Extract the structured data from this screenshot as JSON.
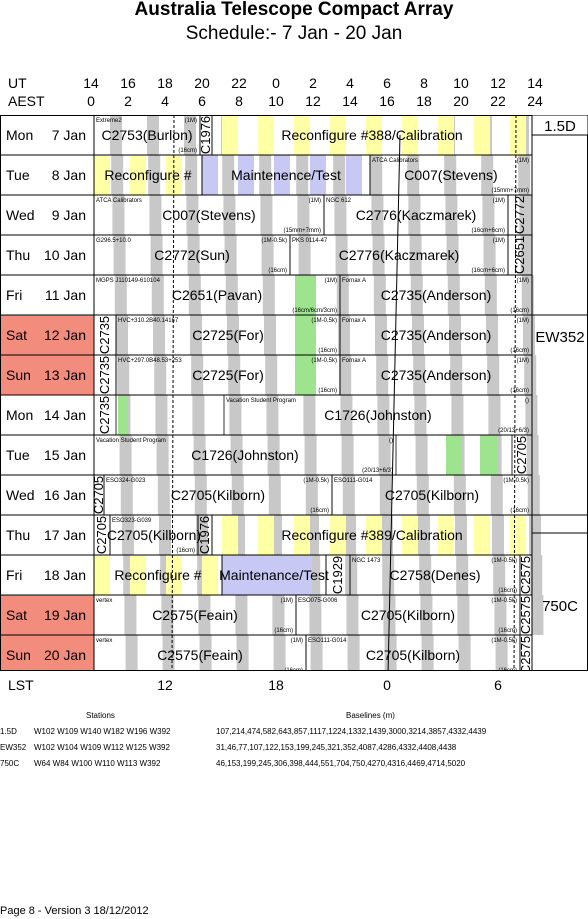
{
  "title": "Australia Telescope Compact Array",
  "subtitle": "Schedule:- 7  Jan - 20 Jan",
  "header": {
    "ut_label": "UT",
    "aest_label": "AEST",
    "lst_label": "LST",
    "ut_ticks": [
      "14",
      "16",
      "18",
      "20",
      "22",
      "0",
      "2",
      "4",
      "6",
      "8",
      "10",
      "12",
      "14"
    ],
    "aest_ticks": [
      "0",
      "2",
      "4",
      "6",
      "8",
      "10",
      "12",
      "14",
      "16",
      "18",
      "20",
      "22",
      "24"
    ],
    "lst_ticks": [
      "12",
      "18",
      "0",
      "6"
    ]
  },
  "days": [
    {
      "wd": "Mon",
      "d": "7 Jan",
      "weekend": false
    },
    {
      "wd": "Tue",
      "d": "8 Jan",
      "weekend": false
    },
    {
      "wd": "Wed",
      "d": "9 Jan",
      "weekend": false
    },
    {
      "wd": "Thu",
      "d": "10 Jan",
      "weekend": false
    },
    {
      "wd": "Fri",
      "d": "11 Jan",
      "weekend": false
    },
    {
      "wd": "Sat",
      "d": "12 Jan",
      "weekend": true
    },
    {
      "wd": "Sun",
      "d": "13 Jan",
      "weekend": true
    },
    {
      "wd": "Mon",
      "d": "14 Jan",
      "weekend": false
    },
    {
      "wd": "Tue",
      "d": "15 Jan",
      "weekend": false
    },
    {
      "wd": "Wed",
      "d": "16 Jan",
      "weekend": false
    },
    {
      "wd": "Thu",
      "d": "17 Jan",
      "weekend": false
    },
    {
      "wd": "Fri",
      "d": "18 Jan",
      "weekend": false
    },
    {
      "wd": "Sat",
      "d": "19 Jan",
      "weekend": true
    },
    {
      "wd": "Sun",
      "d": "20 Jan",
      "weekend": true
    }
  ],
  "configs": [
    "1.5D",
    "EW352",
    "750C"
  ],
  "blocks": [
    {
      "row": 0,
      "x0": 94,
      "x1": 200,
      "label": "C2753(Burlon)",
      "small": "Extreme2",
      "note": "(1M)",
      "note2": "(16cm)"
    },
    {
      "row": 0,
      "x0": 200,
      "x1": 212,
      "label": "C1976",
      "vertical": true
    },
    {
      "row": 0,
      "x0": 212,
      "x1": 532,
      "label": "Reconfigure #388/Calibration"
    },
    {
      "row": 1,
      "x0": 94,
      "x1": 202,
      "label": "Reconfigure #"
    },
    {
      "row": 1,
      "x0": 202,
      "x1": 370,
      "label": "Maintenence/Test"
    },
    {
      "row": 1,
      "x0": 370,
      "x1": 532,
      "label": "C007(Stevens)",
      "small": "ATCA Calibrators",
      "note": "(1M)",
      "note2": "(15mm+7mm)"
    },
    {
      "row": 2,
      "x0": 94,
      "x1": 324,
      "label": "C007(Stevens)",
      "small": "ATCA Calibrators",
      "note": "(1M)",
      "note2": "(15mm+7mm)"
    },
    {
      "row": 2,
      "x0": 324,
      "x1": 508,
      "label": "C2776(Kaczmarek)",
      "small": "NGC 612",
      "note": "(1M)",
      "note2": "(16cm+6cm)"
    },
    {
      "row": 2,
      "x0": 508,
      "x1": 532,
      "label": "C2772",
      "vertical": true
    },
    {
      "row": 3,
      "x0": 94,
      "x1": 290,
      "label": "C2772(Sun)",
      "small": "G296.5+10.0",
      "note": "(1M-0.5k)",
      "note2": "(16cm)"
    },
    {
      "row": 3,
      "x0": 290,
      "x1": 508,
      "label": "C2776(Kaczmarek)",
      "small": "PKS 0114-47",
      "note": "(1M)",
      "note2": "(16cm+6cm)"
    },
    {
      "row": 3,
      "x0": 508,
      "x1": 532,
      "label": "C2651",
      "vertical": true
    },
    {
      "row": 4,
      "x0": 94,
      "x1": 340,
      "label": "C2651(Pavan)",
      "small": "MGPS J110149-610104",
      "note": "(1M)",
      "note2": "(16cm/6cm/3cm)"
    },
    {
      "row": 4,
      "x0": 340,
      "x1": 532,
      "label": "C2735(Anderson)",
      "small": "Fornax A",
      "note": "(1M)",
      "note2": "(16cm)"
    },
    {
      "row": 5,
      "x0": 94,
      "x1": 116,
      "label": "C2735",
      "vertical": true
    },
    {
      "row": 5,
      "x0": 116,
      "x1": 340,
      "label": "C2725(For)",
      "small": "HVC+310.2B40.14167",
      "note": "(1M-0.5k)",
      "note2": "(16cm)"
    },
    {
      "row": 5,
      "x0": 340,
      "x1": 532,
      "label": "C2735(Anderson)",
      "small": "Fornax A",
      "note": "(1M)",
      "note2": "(16cm)"
    },
    {
      "row": 6,
      "x0": 94,
      "x1": 116,
      "label": "C2735",
      "vertical": true
    },
    {
      "row": 6,
      "x0": 116,
      "x1": 340,
      "label": "C2725(For)",
      "small": "HVC+297.0B48.53+253",
      "note": "(1M-0.5k)",
      "note2": "(16cm)"
    },
    {
      "row": 6,
      "x0": 340,
      "x1": 532,
      "label": "C2735(Anderson)",
      "small": "Fornax A",
      "note": "(1M)",
      "note2": "(16cm)"
    },
    {
      "row": 7,
      "x0": 94,
      "x1": 116,
      "label": "C2735",
      "vertical": true
    },
    {
      "row": 7,
      "x0": 224,
      "x1": 532,
      "label": "C1726(Johnston)",
      "small": "Vacation Student Program",
      "note": "()",
      "note2": "(20/13+6/3)"
    },
    {
      "row": 8,
      "x0": 94,
      "x1": 396,
      "label": "C1726(Johnston)",
      "small": "Vacation Student Program",
      "note": "()",
      "note2": "(20/13+6/3)"
    },
    {
      "row": 8,
      "x0": 512,
      "x1": 532,
      "label": "C2705",
      "vertical": true
    },
    {
      "row": 9,
      "x0": 94,
      "x1": 104,
      "label": "C2705",
      "vertical": true
    },
    {
      "row": 9,
      "x0": 104,
      "x1": 332,
      "label": "C2705(Kilborn)",
      "small": "ESO324-G023",
      "note": "(1M-0.5k)",
      "note2": "(16cm)"
    },
    {
      "row": 9,
      "x0": 332,
      "x1": 532,
      "label": "C2705(Kilborn)",
      "small": "ESO111-G014",
      "note": "(1M-0.5k)",
      "note2": "(16cm)"
    },
    {
      "row": 10,
      "x0": 94,
      "x1": 110,
      "label": "C2705",
      "vertical": true
    },
    {
      "row": 10,
      "x0": 110,
      "x1": 198,
      "label": "C2705(Kilborn)",
      "small": "ESO323-G039",
      "note": "",
      "note2": "(16cm)"
    },
    {
      "row": 10,
      "x0": 198,
      "x1": 212,
      "label": "C1976",
      "vertical": true
    },
    {
      "row": 10,
      "x0": 212,
      "x1": 532,
      "label": "Reconfigure #389/Calibration"
    },
    {
      "row": 11,
      "x0": 94,
      "x1": 222,
      "label": "Reconfigure #"
    },
    {
      "row": 11,
      "x0": 222,
      "x1": 326,
      "label": "Maintenance/Test"
    },
    {
      "row": 11,
      "x0": 326,
      "x1": 350,
      "label": "C1929",
      "vertical": true
    },
    {
      "row": 11,
      "x0": 350,
      "x1": 520,
      "label": "C2758(Denes)",
      "small": "NGC 1473",
      "note": "(1M-0.5k)",
      "note2": "(16cm)"
    },
    {
      "row": 11,
      "x0": 520,
      "x1": 532,
      "label": "C2575",
      "vertical": true
    },
    {
      "row": 12,
      "x0": 94,
      "x1": 296,
      "label": "C2575(Feain)",
      "small": "vertex",
      "note": "(1M)",
      "note2": "(16cm)"
    },
    {
      "row": 12,
      "x0": 296,
      "x1": 520,
      "label": "C2705(Kilborn)",
      "small": "ESO075-G006",
      "note": "(1M-0.5k)",
      "note2": "(16cm)"
    },
    {
      "row": 12,
      "x0": 520,
      "x1": 532,
      "label": "C2575",
      "vertical": true
    },
    {
      "row": 13,
      "x0": 94,
      "x1": 306,
      "label": "C2575(Feain)",
      "small": "vertex",
      "note": "(1M)",
      "note2": "(16cm)"
    },
    {
      "row": 13,
      "x0": 306,
      "x1": 520,
      "label": "C2705(Kilborn)",
      "small": "ESO111-G014",
      "note": "(1M-0.5k)",
      "note2": "(16cm)"
    },
    {
      "row": 13,
      "x0": 520,
      "x1": 532,
      "label": "C2575",
      "vertical": true
    }
  ],
  "stations_title": "Stations",
  "baselines_title": "Baselines (m)",
  "config_table": [
    {
      "name": "1.5D",
      "stations": "W102 W109 W140 W182 W196 W392",
      "baselines": "107,214,474,582,643,857,1117,1224,1332,1439,3000,3214,3857,4332,4439"
    },
    {
      "name": "EW352",
      "stations": "W102 W104 W109 W112 W125 W392",
      "baselines": "31,46,77,107,122,153,199,245,321,352,4087,4286,4332,4408,4438"
    },
    {
      "name": "750C",
      "stations": "W64 W84 W100 W110 W113 W392",
      "baselines": "46,153,199,245,306,398,444,551,704,750,4270,4316,4469,4714,5020"
    }
  ],
  "footer": "Page 8 - Version 3  18/12/2012",
  "colors": {
    "weekend": "#f28c7c",
    "gray": "#c8c8c8",
    "yellow": "#ffffa6",
    "lavender": "#c8c8f5",
    "green": "#9ee38e"
  }
}
